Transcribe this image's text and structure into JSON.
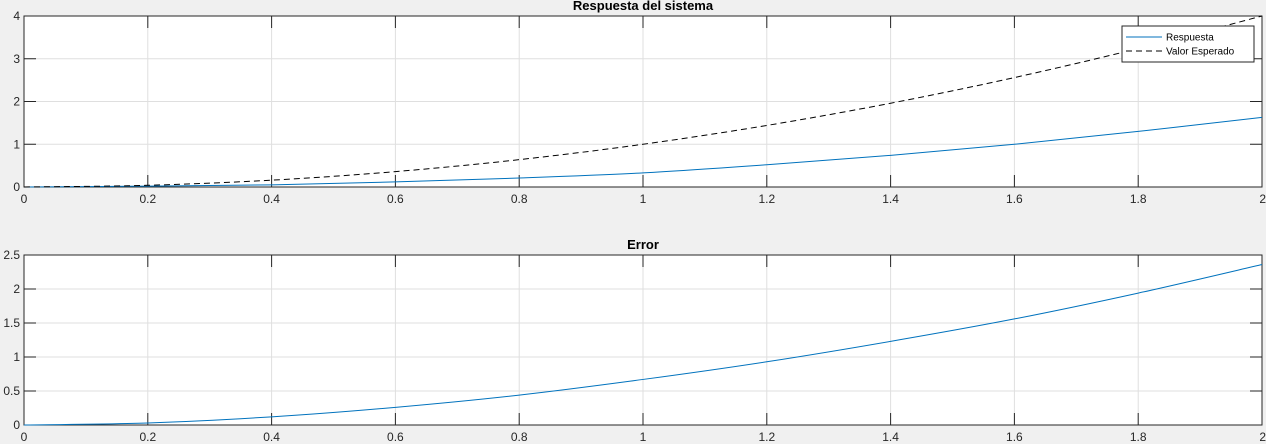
{
  "chart_data": [
    {
      "type": "line",
      "title": "Respuesta del sistema",
      "xlabel": "",
      "ylabel": "",
      "xlim": [
        0,
        2
      ],
      "ylim": [
        0,
        4
      ],
      "xticks": [
        0,
        0.2,
        0.4,
        0.6,
        0.8,
        1,
        1.2,
        1.4,
        1.6,
        1.8,
        2
      ],
      "xtick_labels": [
        "0",
        "0.2",
        "0.4",
        "0.6",
        "0.8",
        "1",
        "1.2",
        "1.4",
        "1.6",
        "1.8",
        "2"
      ],
      "yticks": [
        0,
        1,
        2,
        3,
        4
      ],
      "ytick_labels": [
        "0",
        "1",
        "2",
        "3",
        "4"
      ],
      "grid": true,
      "legend": "top-right",
      "x": [
        0,
        0.2,
        0.4,
        0.6,
        0.8,
        1.0,
        1.2,
        1.4,
        1.6,
        1.8,
        2.0
      ],
      "series": [
        {
          "name": "Respuesta",
          "color": "#0072bd",
          "style": "solid",
          "values": [
            0,
            0.02,
            0.05,
            0.12,
            0.21,
            0.33,
            0.52,
            0.74,
            1.0,
            1.3,
            1.63
          ]
        },
        {
          "name": "Valor Esperado",
          "color": "#000000",
          "style": "dashed",
          "values": [
            0,
            0.04,
            0.16,
            0.36,
            0.64,
            1.0,
            1.44,
            1.96,
            2.56,
            3.24,
            4.0
          ]
        }
      ]
    },
    {
      "type": "line",
      "title": "Error",
      "xlabel": "",
      "ylabel": "",
      "xlim": [
        0,
        2
      ],
      "ylim": [
        0,
        2.5
      ],
      "xticks": [
        0,
        0.2,
        0.4,
        0.6,
        0.8,
        1,
        1.2,
        1.4,
        1.6,
        1.8,
        2
      ],
      "xtick_labels": [
        "0",
        "0.2",
        "0.4",
        "0.6",
        "0.8",
        "1",
        "1.2",
        "1.4",
        "1.6",
        "1.8",
        "2"
      ],
      "yticks": [
        0,
        0.5,
        1,
        1.5,
        2,
        2.5
      ],
      "ytick_labels": [
        "0",
        "0.5",
        "1",
        "1.5",
        "2",
        "2.5"
      ],
      "grid": true,
      "legend": "none",
      "x": [
        0,
        0.2,
        0.4,
        0.6,
        0.8,
        1.0,
        1.2,
        1.4,
        1.6,
        1.8,
        2.0
      ],
      "series": [
        {
          "color": "#0072bd",
          "style": "solid",
          "values": [
            0,
            0.03,
            0.12,
            0.26,
            0.44,
            0.67,
            0.93,
            1.23,
            1.56,
            1.94,
            2.36
          ]
        }
      ]
    }
  ]
}
